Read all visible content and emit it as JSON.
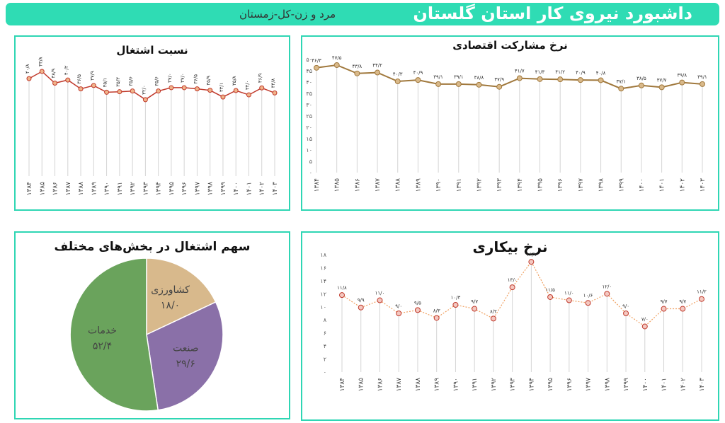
{
  "header": {
    "title": "داشبورد نیروی کار استان گلستان",
    "subtitle": "مرد و زن-کل-زمستان",
    "accent": "#2fdcb4"
  },
  "chart_data": [
    {
      "id": "employment",
      "type": "line",
      "title": "نسبت اشتغال",
      "categories": [
        "۱۳۸۴",
        "۱۳۸۵",
        "۱۳۸۶",
        "۱۳۸۷",
        "۱۳۸۸",
        "۱۳۸۹",
        "۱۳۹۰",
        "۱۳۹۱",
        "۱۳۹۲",
        "۱۳۹۳",
        "۱۳۹۴",
        "۱۳۹۵",
        "۱۳۹۶",
        "۱۳۹۷",
        "۱۳۹۸",
        "۱۳۹۹",
        "۱۴۰۰",
        "۱۴۰۱",
        "۱۴۰۲",
        "۱۴۰۳"
      ],
      "values": [
        40.8,
        43.8,
        38.9,
        40.2,
        36.5,
        37.9,
        35.1,
        35.3,
        35.6,
        32.0,
        35.6,
        37.0,
        37.0,
        36.5,
        35.9,
        33.1,
        35.8,
        34.0,
        36.9,
        34.8
      ],
      "labels": [
        "۴۰/۸",
        "۴۳/۸",
        "۳۸/۹",
        "۴۰/۲",
        "۳۶/۵",
        "۳۷/۹",
        "۳۵/۱",
        "۳۵/۳",
        "۳۵/۶",
        "۳۲/۰",
        "۳۵/۶",
        "۳۷/۰",
        "۳۷/۰",
        "۳۶/۵",
        "۳۵/۹",
        "۳۳/۱",
        "۳۵/۸",
        "۳۴/۰",
        "۳۶/۹",
        "۳۴/۸"
      ],
      "ylim": [
        0,
        50
      ],
      "line_color": "#c0392b",
      "marker_color": "#f0b48a"
    },
    {
      "id": "participation",
      "type": "line",
      "title": "نرخ مشارکت اقتصادی",
      "categories": [
        "۱۳۸۴",
        "۱۳۸۵",
        "۱۳۸۶",
        "۱۳۸۷",
        "۱۳۸۸",
        "۱۳۸۹",
        "۱۳۹۰",
        "۱۳۹۱",
        "۱۳۹۲",
        "۱۳۹۳",
        "۱۳۹۴",
        "۱۳۹۵",
        "۱۳۹۶",
        "۱۳۹۷",
        "۱۳۹۸",
        "۱۳۹۹",
        "۱۴۰۰",
        "۱۴۰۱",
        "۱۴۰۲",
        "۱۴۰۳"
      ],
      "values": [
        46.3,
        47.5,
        43.8,
        44.2,
        40.3,
        40.9,
        39.1,
        39.1,
        38.8,
        37.9,
        41.7,
        41.3,
        41.2,
        40.9,
        40.8,
        37.1,
        38.5,
        37.7,
        39.8,
        39.1
      ],
      "labels": [
        "۴۶/۳",
        "۴۷/۵",
        "۴۳/۸",
        "۴۴/۲",
        "۴۰/۳",
        "۴۰/۹",
        "۳۹/۱",
        "۳۹/۱",
        "۳۸/۸",
        "۳۷/۹",
        "۴۱/۷",
        "۴۱/۳",
        "۴۱/۲",
        "۴۰/۹",
        "۴۰/۸",
        "۳۷/۱",
        "۳۸/۵",
        "۳۷/۷",
        "۳۹/۸",
        "۳۹/۱"
      ],
      "yticks": [
        "۰",
        "۵",
        "۱۰",
        "۱۵",
        "۲۰",
        "۲۵",
        "۳۰",
        "۳۵",
        "۴۰",
        "۴۵",
        "۵۰"
      ],
      "ylim": [
        0,
        50
      ],
      "line_color": "#a0783c",
      "marker_color": "#d9b98a"
    },
    {
      "id": "sectors",
      "type": "pie",
      "title": "سهم اشتغال در بخش‌های مختلف",
      "slices": [
        {
          "name": "کشاورزی",
          "value": 18.0,
          "label": "۱۸/۰",
          "color": "#d8b98c"
        },
        {
          "name": "صنعت",
          "value": 29.6,
          "label": "۲۹/۶",
          "color": "#8a70a8"
        },
        {
          "name": "خدمات",
          "value": 52.4,
          "label": "۵۲/۴",
          "color": "#6aa35c"
        }
      ]
    },
    {
      "id": "unemployment",
      "type": "line",
      "title": "نرخ بیکاری",
      "categories": [
        "۱۳۸۴",
        "۱۳۸۵",
        "۱۳۸۶",
        "۱۳۸۷",
        "۱۳۸۸",
        "۱۳۸۹",
        "۱۳۹۰",
        "۱۳۹۱",
        "۱۳۹۲",
        "۱۳۹۳",
        "۱۳۹۴",
        "۱۳۹۵",
        "۱۳۹۶",
        "۱۳۹۷",
        "۱۳۹۸",
        "۱۳۹۹",
        "۱۴۰۰",
        "۱۴۰۱",
        "۱۴۰۲",
        "۱۴۰۳"
      ],
      "values": [
        11.8,
        9.9,
        11.0,
        9.0,
        9.5,
        8.3,
        10.3,
        9.7,
        8.2,
        13.0,
        16.9,
        11.5,
        11.0,
        10.6,
        12.0,
        9.0,
        7.0,
        9.7,
        9.7,
        11.2
      ],
      "labels": [
        "۱۱/۸",
        "۹/۹",
        "۱۱/۰",
        "۹/۰",
        "۹/۵",
        "۸/۳",
        "۱۰/۳",
        "۹/۷",
        "۸/۲",
        "۱۳/۰",
        "۱۶/۹",
        "۱۱/۵",
        "۱۱/۰",
        "۱۰/۶",
        "۱۲/۰",
        "۹/۰",
        "۷/۰",
        "۹/۷",
        "۹/۷",
        "۱۱/۲"
      ],
      "yticks": [
        "۰",
        "۲",
        "۴",
        "۶",
        "۸",
        "۱۰",
        "۱۲",
        "۱۴",
        "۱۶",
        "۱۸"
      ],
      "ylim": [
        0,
        18
      ],
      "line_color": "#f0a060",
      "marker_color": "#c0392b"
    }
  ]
}
